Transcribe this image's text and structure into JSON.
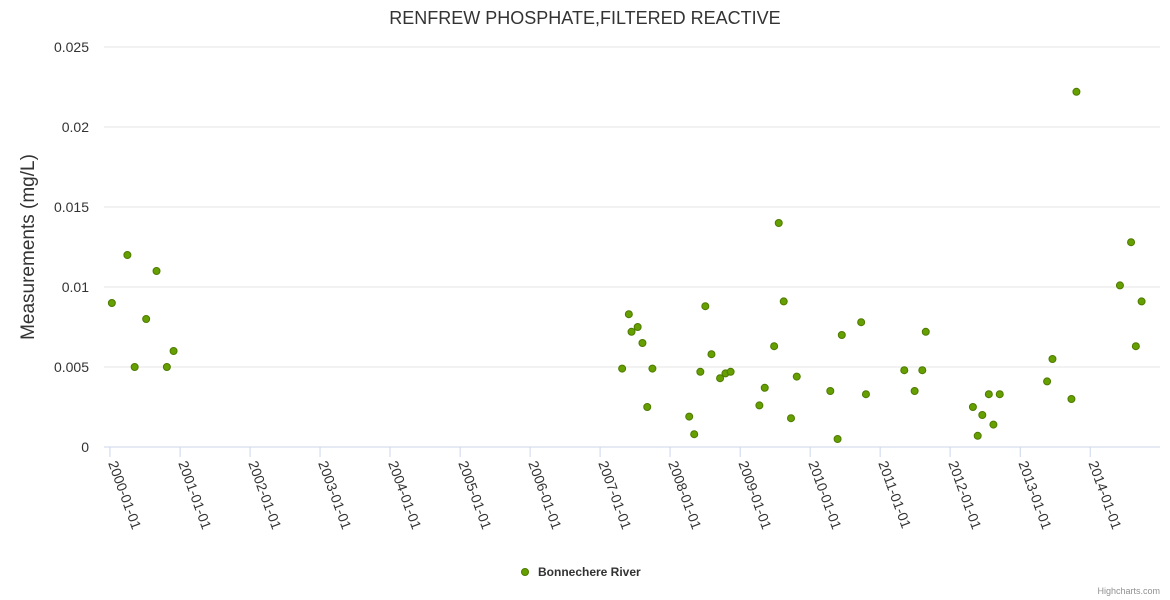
{
  "credits": "Highcharts.com",
  "chart_data": {
    "type": "scatter",
    "title": "RENFREW PHOSPHATE,FILTERED REACTIVE",
    "ylabel": "Measurements (mg/L)",
    "xlabel": "",
    "x_axis_type": "datetime",
    "xlim": [
      "1999-12-01",
      "2014-12-31"
    ],
    "ylim": [
      0,
      0.025
    ],
    "x_ticks": [
      "2000-01-01",
      "2001-01-01",
      "2002-01-01",
      "2003-01-01",
      "2004-01-01",
      "2005-01-01",
      "2006-01-01",
      "2007-01-01",
      "2008-01-01",
      "2009-01-01",
      "2010-01-01",
      "2011-01-01",
      "2012-01-01",
      "2013-01-01",
      "2014-01-01"
    ],
    "y_ticks": [
      "0",
      "0.005",
      "0.01",
      "0.015",
      "0.02",
      "0.025"
    ],
    "grid": true,
    "legend_position": "bottom-center",
    "colors": {
      "marker_fill": "#66a000",
      "marker_stroke": "#4d7a00"
    },
    "series": [
      {
        "name": "Bonnechere River",
        "points": [
          [
            "2000-01-11",
            0.009
          ],
          [
            "2000-04-01",
            0.012
          ],
          [
            "2000-05-09",
            0.005
          ],
          [
            "2000-07-08",
            0.008
          ],
          [
            "2000-08-31",
            0.011
          ],
          [
            "2000-10-24",
            0.005
          ],
          [
            "2000-11-28",
            0.006
          ],
          [
            "2007-04-26",
            0.0049
          ],
          [
            "2007-05-31",
            0.0083
          ],
          [
            "2007-06-14",
            0.0072
          ],
          [
            "2007-07-16",
            0.0075
          ],
          [
            "2007-08-10",
            0.0065
          ],
          [
            "2007-09-04",
            0.0025
          ],
          [
            "2007-10-01",
            0.0049
          ],
          [
            "2008-04-10",
            0.0019
          ],
          [
            "2008-05-06",
            0.0008
          ],
          [
            "2008-06-07",
            0.0047
          ],
          [
            "2008-07-03",
            0.0088
          ],
          [
            "2008-08-04",
            0.0058
          ],
          [
            "2008-09-18",
            0.0043
          ],
          [
            "2008-10-16",
            0.0046
          ],
          [
            "2008-11-12",
            0.0047
          ],
          [
            "2009-04-11",
            0.0026
          ],
          [
            "2009-05-09",
            0.0037
          ],
          [
            "2009-06-27",
            0.0063
          ],
          [
            "2009-07-21",
            0.014
          ],
          [
            "2009-08-16",
            0.0091
          ],
          [
            "2009-09-23",
            0.0018
          ],
          [
            "2009-10-23",
            0.0044
          ],
          [
            "2010-04-16",
            0.0035
          ],
          [
            "2010-05-24",
            0.0005
          ],
          [
            "2010-06-15",
            0.007
          ],
          [
            "2010-09-24",
            0.0078
          ],
          [
            "2010-10-19",
            0.0033
          ],
          [
            "2011-05-07",
            0.0048
          ],
          [
            "2011-06-30",
            0.0035
          ],
          [
            "2011-08-09",
            0.0048
          ],
          [
            "2011-08-27",
            0.0072
          ],
          [
            "2012-04-29",
            0.0025
          ],
          [
            "2012-05-24",
            0.0007
          ],
          [
            "2012-06-17",
            0.002
          ],
          [
            "2012-07-21",
            0.0033
          ],
          [
            "2012-08-14",
            0.0014
          ],
          [
            "2012-09-16",
            0.0033
          ],
          [
            "2013-05-21",
            0.0041
          ],
          [
            "2013-06-18",
            0.0055
          ],
          [
            "2013-09-25",
            0.003
          ],
          [
            "2013-10-21",
            0.0222
          ],
          [
            "2014-06-05",
            0.0101
          ],
          [
            "2014-08-02",
            0.0128
          ],
          [
            "2014-08-27",
            0.0063
          ],
          [
            "2014-09-26",
            0.0091
          ]
        ]
      }
    ]
  }
}
